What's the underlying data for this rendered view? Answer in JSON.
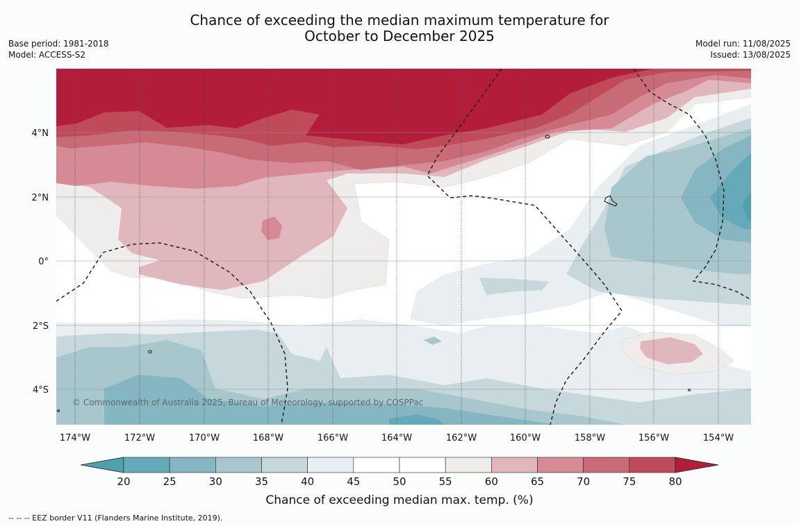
{
  "title": {
    "line1": "Chance of exceeding the median maximum temperature for",
    "line2": "October to December 2025"
  },
  "meta": {
    "base_period": "Base period: 1981-2018",
    "model": "Model: ACCESS-S2",
    "model_run": "Model run: 11/08/2025",
    "issued": "Issued: 13/08/2025"
  },
  "map": {
    "lat_ticks": [
      "4°N",
      "2°N",
      "0°",
      "2°S",
      "4°S"
    ],
    "lon_ticks": [
      "174°W",
      "172°W",
      "170°W",
      "168°W",
      "166°W",
      "164°W",
      "162°W",
      "160°W",
      "158°W",
      "156°W",
      "154°W"
    ],
    "copyright": "© Commonwealth of Australia 2025, Bureau of Meteorology, supported by COSPPac"
  },
  "colorbar": {
    "labels": [
      "20",
      "25",
      "30",
      "35",
      "40",
      "45",
      "50",
      "55",
      "60",
      "65",
      "70",
      "75",
      "80"
    ],
    "colors": [
      "#66aab9",
      "#87b6c3",
      "#a7c7cd",
      "#c6d8dc",
      "#e9eef1",
      "#ffffff",
      "#ffffff",
      "#efecec",
      "#e0b7bd",
      "#d58a95",
      "#c76b76",
      "#bf4b5a"
    ],
    "under_color": "#4ea2b0",
    "over_color": "#b21d3a",
    "title": "Chance of exceeding median max. temp. (%)"
  },
  "footer": "--  --  -- EEZ border V11 (Flanders Marine Institute, 2019)."
}
